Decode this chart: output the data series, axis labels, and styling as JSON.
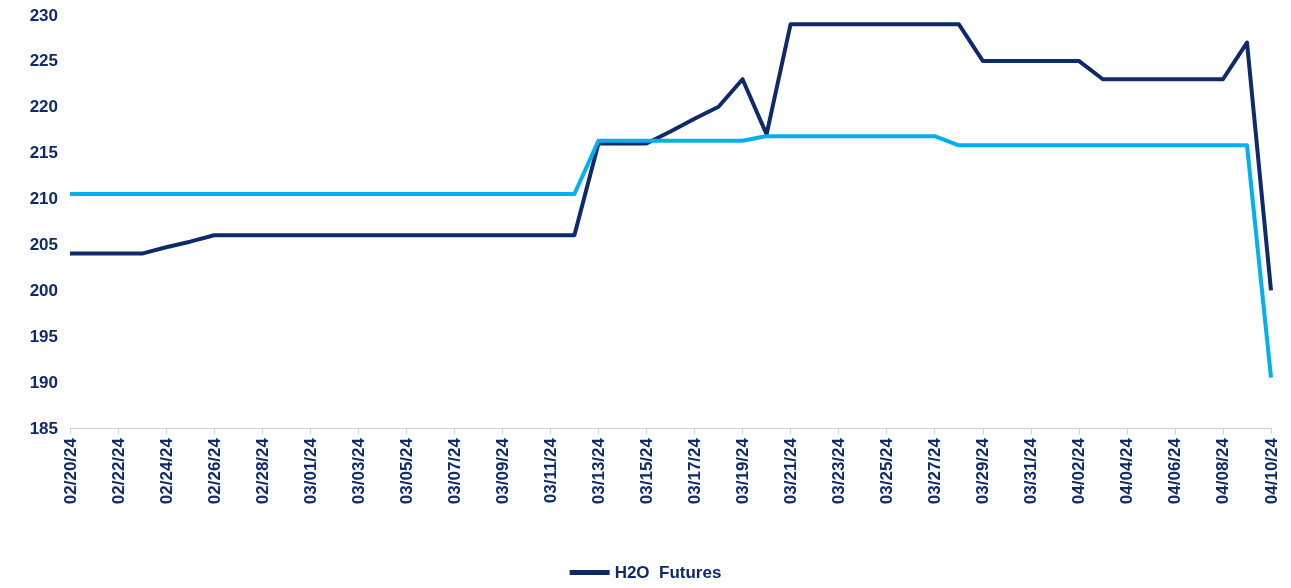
{
  "chart_data": {
    "type": "line",
    "categories": [
      "02/20/24",
      null,
      "02/22/24",
      null,
      "02/24/24",
      null,
      "02/26/24",
      null,
      "02/28/24",
      null,
      "03/01/24",
      null,
      "03/03/24",
      null,
      "03/05/24",
      null,
      "03/07/24",
      null,
      "03/09/24",
      null,
      "03/11/24",
      null,
      "03/13/24",
      null,
      "03/15/24",
      null,
      "03/17/24",
      null,
      "03/19/24",
      null,
      "03/21/24",
      null,
      "03/23/24",
      null,
      "03/25/24",
      null,
      "03/27/24",
      null,
      "03/29/24",
      null,
      "03/31/24",
      null,
      "04/02/24",
      null,
      "04/04/24",
      null,
      "04/06/24",
      null,
      "04/08/24",
      null,
      "04/10/24"
    ],
    "series": [
      {
        "name": "H2O  Futures",
        "color": "#0f2a6b",
        "values": [
          204,
          204,
          204,
          204,
          204.7,
          205.3,
          206,
          206,
          206,
          206,
          206,
          206,
          206,
          206,
          206,
          206,
          206,
          206,
          206,
          206,
          206,
          206,
          216,
          216,
          216,
          217.3,
          218.7,
          220,
          223,
          217,
          229,
          229,
          229,
          229,
          229,
          229,
          229,
          229,
          225,
          225,
          225,
          225,
          225,
          223,
          223,
          223,
          223,
          223,
          223,
          227,
          200
        ]
      },
      {
        "color": "#00b0f0",
        "values": [
          210.5,
          210.5,
          210.5,
          210.5,
          210.5,
          210.5,
          210.5,
          210.5,
          210.5,
          210.5,
          210.5,
          210.5,
          210.5,
          210.5,
          210.5,
          210.5,
          210.5,
          210.5,
          210.5,
          210.5,
          210.5,
          210.5,
          216.3,
          216.3,
          216.3,
          216.3,
          216.3,
          216.3,
          216.3,
          216.8,
          216.8,
          216.8,
          216.8,
          216.8,
          216.8,
          216.8,
          216.8,
          215.8,
          215.8,
          215.8,
          215.8,
          215.8,
          215.8,
          215.8,
          215.8,
          215.8,
          215.8,
          215.8,
          215.8,
          215.8,
          190.5
        ]
      }
    ],
    "ylim": [
      185,
      230
    ],
    "yticks": [
      185,
      190,
      195,
      200,
      205,
      210,
      215,
      220,
      225,
      230
    ],
    "grid": false,
    "legend": "bottom",
    "marker": "none",
    "line_style": "solid"
  }
}
